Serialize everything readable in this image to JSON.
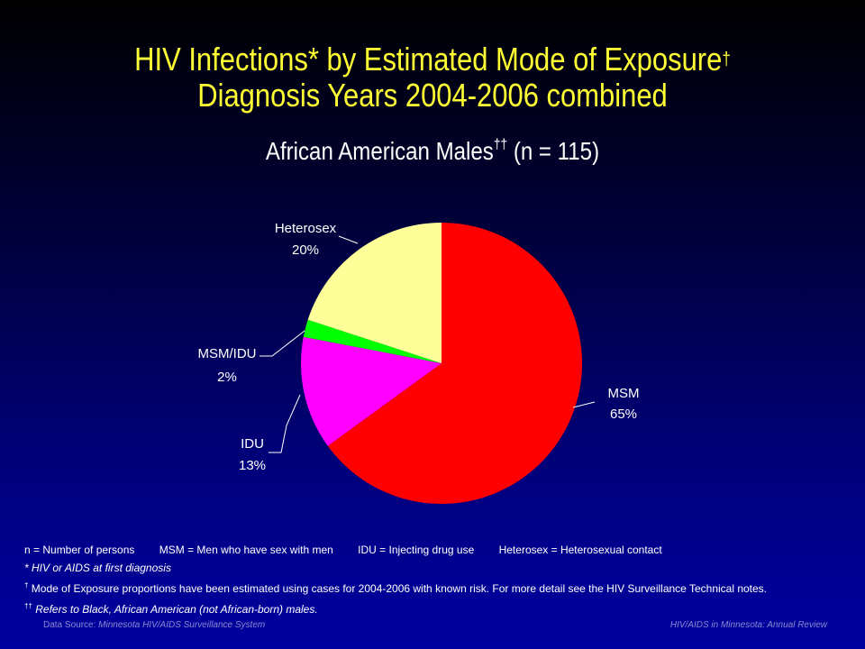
{
  "title": {
    "line1": "HIV Infections* by Estimated Mode of Exposure",
    "line1_mark": "†",
    "line2": "Diagnosis Years 2004-2006 combined"
  },
  "subtitle": {
    "text": "African American Males",
    "mark": "††",
    "n": "(n = 115)"
  },
  "chart_data": {
    "type": "pie",
    "title": "African American Males (n = 115)",
    "slices": [
      {
        "label": "MSM",
        "value": 65,
        "pct_label": "65%",
        "color": "#ff0000"
      },
      {
        "label": "IDU",
        "value": 13,
        "pct_label": "13%",
        "color": "#ff00ff"
      },
      {
        "label": "MSM/IDU",
        "value": 2,
        "pct_label": "2%",
        "color": "#00ff00"
      },
      {
        "label": "Heterosex",
        "value": 20,
        "pct_label": "20%",
        "color": "#ffff99"
      }
    ]
  },
  "notes": {
    "definitions": [
      "n = Number of persons",
      "MSM = Men who have sex with men",
      "IDU = Injecting drug use",
      "Heterosex = Heterosexual contact"
    ],
    "star": "* HIV or AIDS at first diagnosis",
    "dagger_mark": "†",
    "dagger": "Mode of Exposure proportions have been estimated using cases for 2004-2006  with known risk. For more detail see the HIV Surveillance Technical notes.",
    "double_dagger_mark": "††",
    "double_dagger": "Refers to Black, African American (not African-born) males."
  },
  "footer": {
    "source_prefix": "Data Source: ",
    "source": "Minnesota HIV/AIDS Surveillance System",
    "right": "HIV/AIDS in Minnesota: Annual Review"
  }
}
